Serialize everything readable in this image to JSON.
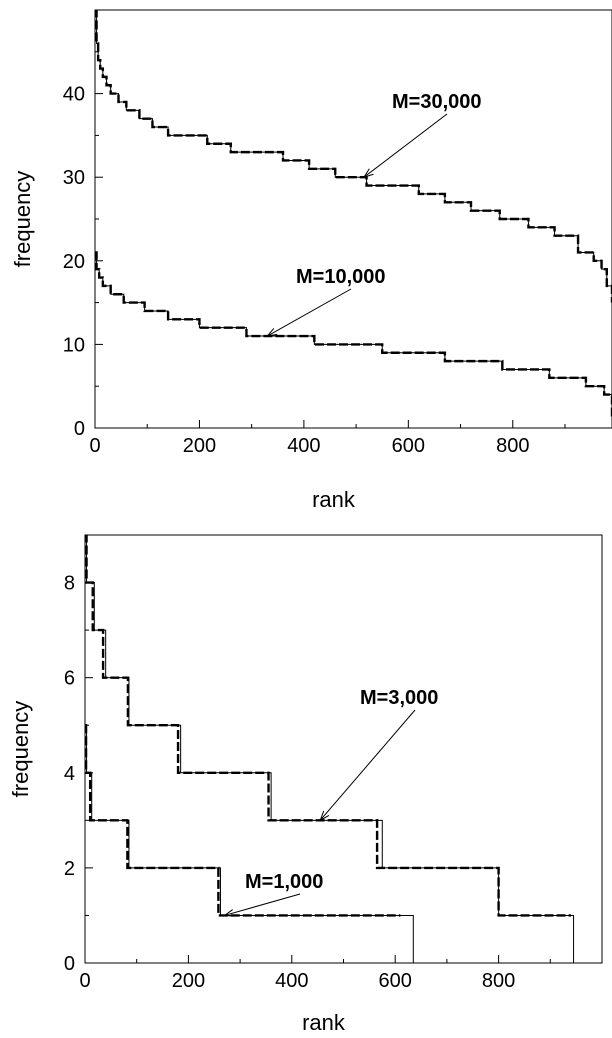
{
  "chart_data": [
    {
      "type": "line",
      "title": "",
      "xlabel": "rank",
      "ylabel": "frequency",
      "xlim": [
        0,
        990
      ],
      "ylim": [
        0,
        50
      ],
      "xticks": [
        0,
        200,
        400,
        600,
        800
      ],
      "yticks": [
        0,
        10,
        20,
        30,
        40
      ],
      "grid": false,
      "legend": "none",
      "annotations": [
        {
          "text": "M=30,000",
          "target": [
            515,
            30
          ],
          "series_ref": "s30000"
        },
        {
          "text": "M=10,000",
          "target": [
            330,
            11
          ],
          "series_ref": "s10000"
        }
      ],
      "series": [
        {
          "id": "s30000",
          "style": "thin-solid",
          "color": "#000000",
          "x": [
            0,
            3,
            6,
            10,
            15,
            22,
            30,
            45,
            60,
            85,
            110,
            140,
            175,
            215,
            260,
            310,
            360,
            410,
            460,
            520,
            570,
            620,
            670,
            720,
            775,
            830,
            880,
            925,
            955,
            970,
            980,
            990
          ],
          "y": [
            50,
            46,
            44,
            43,
            42,
            41,
            40,
            39,
            38,
            37,
            36,
            35,
            35,
            34,
            33,
            33,
            32,
            31,
            30,
            29,
            29,
            28,
            27,
            26,
            25,
            24,
            23,
            21,
            20,
            19,
            17,
            15
          ]
        },
        {
          "id": "s30000d",
          "style": "thick-dashed",
          "color": "#000000",
          "x": [
            0,
            3,
            6,
            10,
            15,
            22,
            30,
            45,
            60,
            85,
            110,
            140,
            175,
            215,
            260,
            310,
            360,
            410,
            460,
            520,
            570,
            620,
            670,
            720,
            775,
            830,
            880,
            925,
            955,
            970,
            980,
            990
          ],
          "y": [
            50,
            46,
            44,
            43,
            42,
            41,
            40,
            39,
            38,
            37,
            36,
            35,
            35,
            34,
            33,
            33,
            32,
            31,
            30,
            29,
            29,
            28,
            27,
            26,
            25,
            24,
            23,
            21,
            20,
            19,
            17,
            15
          ]
        },
        {
          "id": "s10000",
          "style": "thin-solid",
          "color": "#000000",
          "x": [
            0,
            3,
            8,
            15,
            30,
            55,
            95,
            140,
            200,
            290,
            420,
            550,
            670,
            780,
            870,
            940,
            975,
            990
          ],
          "y": [
            21,
            19,
            18,
            17,
            16,
            15,
            14,
            13,
            12,
            11,
            10,
            9,
            8,
            7,
            6,
            5,
            4,
            1
          ],
          "y_is_right_edge": true
        },
        {
          "id": "s10000d",
          "style": "thick-dashed",
          "color": "#000000",
          "x": [
            0,
            3,
            8,
            15,
            30,
            55,
            95,
            140,
            200,
            290,
            420,
            550,
            670,
            780,
            870,
            940,
            975,
            990
          ],
          "y": [
            21,
            19,
            18,
            17,
            16,
            15,
            14,
            13,
            12,
            11,
            10,
            9,
            8,
            7,
            6,
            5,
            4,
            1
          ]
        }
      ]
    },
    {
      "type": "line",
      "title": "",
      "xlabel": "rank",
      "ylabel": "frequency",
      "xlim": [
        0,
        1000
      ],
      "ylim": [
        0,
        9
      ],
      "xticks": [
        0,
        200,
        400,
        600,
        800
      ],
      "yticks": [
        0,
        2,
        4,
        6,
        8
      ],
      "grid": false,
      "legend": "none",
      "annotations": [
        {
          "text": "M=3,000",
          "target": [
            455,
            3
          ],
          "series_ref": "s3000"
        },
        {
          "text": "M=1,000",
          "target": [
            270,
            1
          ],
          "series_ref": "s1000"
        }
      ],
      "series": [
        {
          "id": "s3000",
          "style": "thin-solid",
          "color": "#000000",
          "x": [
            0,
            3,
            18,
            40,
            85,
            185,
            360,
            575,
            800,
            945
          ],
          "y": [
            9,
            8,
            7,
            6,
            5,
            4,
            3,
            2,
            1,
            0
          ]
        },
        {
          "id": "s3000d",
          "style": "thick-dashed",
          "color": "#000000",
          "x": [
            0,
            3,
            15,
            35,
            83,
            180,
            355,
            565,
            800
          ],
          "y": [
            9,
            8,
            7,
            6,
            5,
            4,
            3,
            2,
            1
          ],
          "end_x": 940
        },
        {
          "id": "s1000",
          "style": "thin-solid",
          "color": "#000000",
          "x": [
            0,
            3,
            13,
            85,
            262,
            635
          ],
          "y": [
            5,
            4,
            3,
            2,
            1,
            0
          ]
        },
        {
          "id": "s1000d",
          "style": "thick-dashed",
          "color": "#000000",
          "x": [
            0,
            2,
            10,
            82,
            258
          ],
          "y": [
            5,
            4,
            3,
            2,
            1
          ],
          "end_x": 610
        }
      ]
    }
  ]
}
